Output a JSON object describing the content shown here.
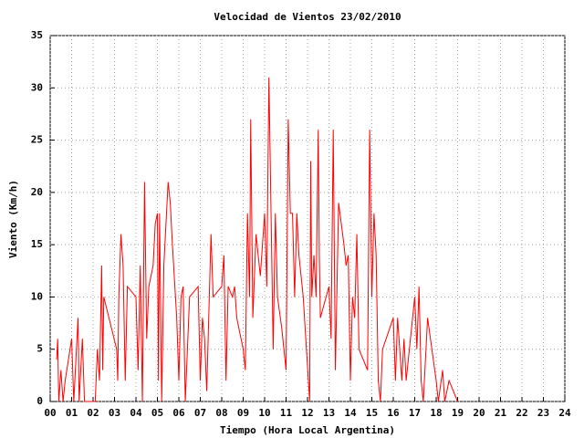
{
  "chart_data": {
    "type": "line",
    "title": "Velocidad de Vientos 23/02/2010",
    "x_label": "Tiempo (Hora Local Argentina)",
    "y_label": "Viento (Km/h)",
    "color": "#ff0000",
    "grid": true,
    "xlim": [
      0,
      24
    ],
    "ylim": [
      0,
      35
    ],
    "xticks": [
      {
        "value": 0,
        "label": "00"
      },
      {
        "value": 1,
        "label": "01"
      },
      {
        "value": 2,
        "label": "02"
      },
      {
        "value": 3,
        "label": "03"
      },
      {
        "value": 4,
        "label": "04"
      },
      {
        "value": 5,
        "label": "05"
      },
      {
        "value": 6,
        "label": "06"
      },
      {
        "value": 7,
        "label": "07"
      },
      {
        "value": 8,
        "label": "08"
      },
      {
        "value": 9,
        "label": "09"
      },
      10,
      11,
      12,
      13,
      14,
      15,
      16,
      17,
      18,
      19,
      20,
      21,
      22,
      23,
      24
    ],
    "yticks": [
      0,
      5,
      10,
      15,
      20,
      25,
      30,
      35
    ],
    "x": [
      0.3,
      0.35,
      0.4,
      0.5,
      0.6,
      0.7,
      1.0,
      1.1,
      1.3,
      1.35,
      1.5,
      1.6,
      2.1,
      2.2,
      2.3,
      2.4,
      2.45,
      2.5,
      3.1,
      3.15,
      3.2,
      3.3,
      3.4,
      3.5,
      3.6,
      4.0,
      4.1,
      4.2,
      4.3,
      4.4,
      4.5,
      4.6,
      4.8,
      4.9,
      5.0,
      5.05,
      5.1,
      5.2,
      5.3,
      5.5,
      5.6,
      5.7,
      5.9,
      6.0,
      6.1,
      6.2,
      6.3,
      6.5,
      6.9,
      7.0,
      7.1,
      7.2,
      7.3,
      7.5,
      7.6,
      8.0,
      8.1,
      8.2,
      8.3,
      8.5,
      8.6,
      8.7,
      9.0,
      9.1,
      9.2,
      9.3,
      9.35,
      9.45,
      9.6,
      9.8,
      10.0,
      10.1,
      10.2,
      10.3,
      10.4,
      10.5,
      10.6,
      10.8,
      11.0,
      11.1,
      11.2,
      11.3,
      11.4,
      11.5,
      11.6,
      11.8,
      12.1,
      12.15,
      12.2,
      12.3,
      12.4,
      12.5,
      12.55,
      12.6,
      13.0,
      13.1,
      13.2,
      13.3,
      13.45,
      13.7,
      13.8,
      13.9,
      14.0,
      14.1,
      14.2,
      14.3,
      14.4,
      14.8,
      14.9,
      15.0,
      15.1,
      15.2,
      15.3,
      15.4,
      15.5,
      16.0,
      16.1,
      16.2,
      16.4,
      16.5,
      16.6,
      17.0,
      17.1,
      17.2,
      17.3,
      17.4,
      17.6,
      17.8,
      18.0,
      18.1,
      18.3,
      18.4,
      18.6,
      19.0
    ],
    "values": [
      4,
      6,
      0,
      3,
      0,
      2,
      6,
      0,
      8,
      0,
      6,
      0,
      0,
      5,
      2,
      13,
      3,
      10,
      5,
      2,
      10,
      16,
      13,
      2,
      11,
      10,
      3,
      13,
      0,
      21,
      6,
      11,
      13,
      17,
      18,
      2,
      18,
      0,
      13,
      21,
      19,
      15,
      8,
      2,
      10,
      11,
      0,
      10,
      11,
      2,
      8,
      6,
      1,
      16,
      10,
      11,
      14,
      2,
      11,
      10,
      11,
      8,
      5,
      3,
      18,
      10,
      27,
      8,
      16,
      12,
      18,
      11,
      31,
      18,
      5,
      18,
      10,
      7,
      3,
      27,
      18,
      18,
      10,
      18,
      14,
      10,
      0,
      23,
      10,
      14,
      10,
      26,
      14,
      8,
      11,
      6,
      26,
      3,
      19,
      15,
      13,
      14,
      2,
      10,
      8,
      16,
      5,
      3,
      26,
      10,
      18,
      14,
      2,
      0,
      5,
      8,
      2,
      8,
      2,
      6,
      2,
      10,
      5,
      11,
      2,
      0,
      8,
      5,
      2,
      0,
      3,
      0,
      2,
      0
    ]
  }
}
